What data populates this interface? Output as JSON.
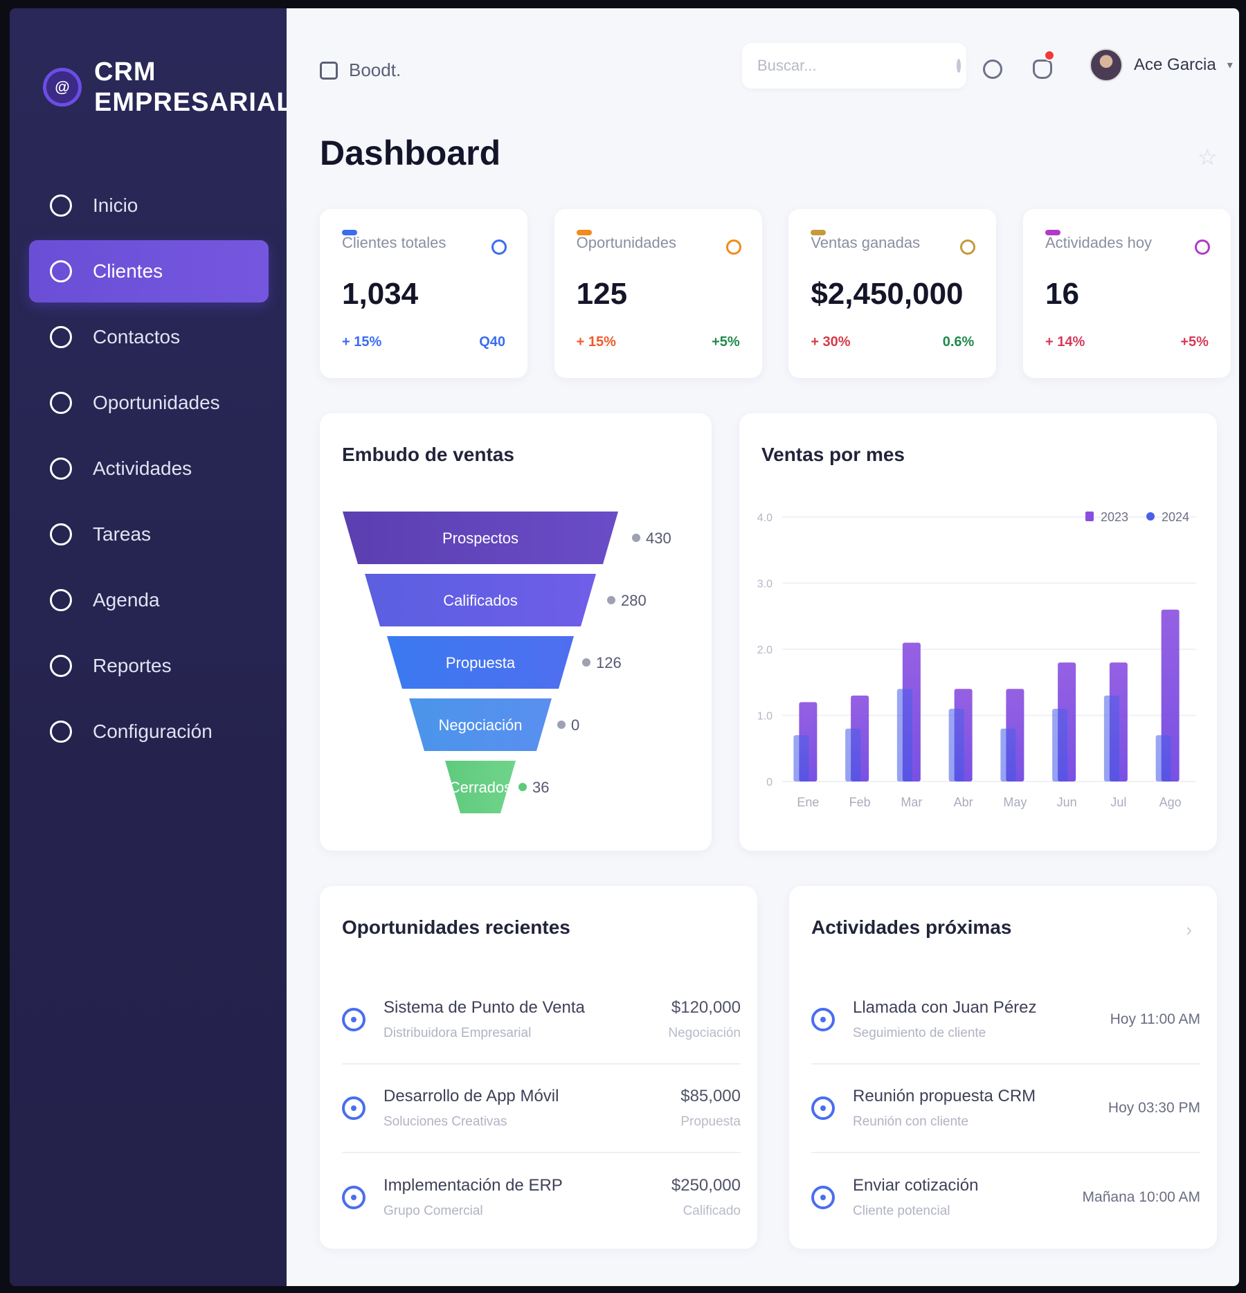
{
  "brand": {
    "line1": "CRM",
    "line2": "EMPRESARIAL",
    "logo": "@"
  },
  "nav": [
    {
      "label": "Inicio",
      "icon": "home-icon",
      "active": false
    },
    {
      "label": "Clientes",
      "icon": "users-icon",
      "active": true
    },
    {
      "label": "Contactos",
      "icon": "contacts-icon",
      "active": false
    },
    {
      "label": "Oportunidades",
      "icon": "dollar-icon",
      "active": false
    },
    {
      "label": "Actividades",
      "icon": "activity-icon",
      "active": false
    },
    {
      "label": "Tareas",
      "icon": "task-icon",
      "active": false
    },
    {
      "label": "Agenda",
      "icon": "calendar-icon",
      "active": false
    },
    {
      "label": "Reportes",
      "icon": "report-icon",
      "active": false
    },
    {
      "label": "Configuración",
      "icon": "settings-icon",
      "active": false
    }
  ],
  "topbar": {
    "breadcrumb": "Boodt.",
    "search_placeholder": "Buscar...",
    "user_name": "Ace Garcia",
    "notification_count": "0"
  },
  "page": {
    "title": "Dashboard"
  },
  "kpis": [
    {
      "label": "Clientes totales",
      "value": "1,034",
      "change": "+ 15%",
      "right": "Q40",
      "accent": "#3a6df0",
      "left_color": "#3a6df0",
      "right_color": "#3a6df0"
    },
    {
      "label": "Oportunidades",
      "value": "125",
      "change": "+ 15%",
      "right": "+5%",
      "accent": "#f28a1c",
      "left_color": "#ef5a2a",
      "right_color": "#1f8a4c"
    },
    {
      "label": "Ventas ganadas",
      "value": "$2,450,000",
      "change": "+ 30%",
      "right": "0.6%",
      "accent": "#c49a3a",
      "left_color": "#d63a4a",
      "right_color": "#1f8a4c"
    },
    {
      "label": "Actividades hoy",
      "value": "16",
      "change": "+ 14%",
      "right": "+5%",
      "accent": "#b23ac9",
      "left_color": "#d63a5a",
      "right_color": "#d63a5a"
    }
  ],
  "funnel": {
    "title": "Embudo de ventas",
    "stages": [
      {
        "label": "Prospectos",
        "value": "430",
        "color_a": "#5b3fb0",
        "color_b": "#6a4cc8"
      },
      {
        "label": "Calificados",
        "value": "280",
        "color_a": "#5a5fe0",
        "color_b": "#6f5ee8"
      },
      {
        "label": "Propuesta",
        "value": "126",
        "color_a": "#3a7af0",
        "color_b": "#4f6ef0"
      },
      {
        "label": "Negociación",
        "value": "0",
        "color_a": "#4a95ea",
        "color_b": "#5a8ff0"
      },
      {
        "label": "Cerrados",
        "value": "36",
        "color_a": "#5fca7d",
        "color_b": "#6fd48a"
      }
    ]
  },
  "chart_data": {
    "type": "bar",
    "title": "Ventas por mes",
    "categories": [
      "Ene",
      "Feb",
      "Mar",
      "Abr",
      "May",
      "Jun",
      "Jul",
      "Ago"
    ],
    "series": [
      {
        "name": "2023",
        "values": [
          1.2,
          1.3,
          2.1,
          1.4,
          1.4,
          1.8,
          1.8,
          2.6
        ],
        "color": "#8a4fe0"
      },
      {
        "name": "2024",
        "values": [
          0.7,
          0.8,
          1.4,
          1.1,
          0.8,
          1.1,
          1.3,
          0.7
        ],
        "color": "#4a5fe8"
      }
    ],
    "ylim": [
      0,
      4
    ],
    "ytick_labels": [
      "0",
      "1.0",
      "2.0",
      "3.0",
      "4.0"
    ],
    "legend_position": "top-right"
  },
  "opportunities": {
    "title": "Oportunidades recientes",
    "items": [
      {
        "title": "Sistema de Punto de Venta",
        "company": "Distribuidora Empresarial",
        "amount": "$120,000",
        "stage": "Negociación"
      },
      {
        "title": "Desarrollo de App Móvil",
        "company": "Soluciones Creativas",
        "amount": "$85,000",
        "stage": "Propuesta"
      },
      {
        "title": "Implementación de ERP",
        "company": "Grupo Comercial",
        "amount": "$250,000",
        "stage": "Calificado"
      }
    ]
  },
  "activities": {
    "title": "Actividades próximas",
    "items": [
      {
        "title": "Llamada con Juan Pérez",
        "sub": "Seguimiento de cliente",
        "time": "Hoy 11:00 AM"
      },
      {
        "title": "Reunión propuesta CRM",
        "sub": "Reunión con cliente",
        "time": "Hoy 03:30 PM"
      },
      {
        "title": "Enviar cotización",
        "sub": "Cliente potencial",
        "time": "Mañana 10:00 AM"
      }
    ]
  }
}
